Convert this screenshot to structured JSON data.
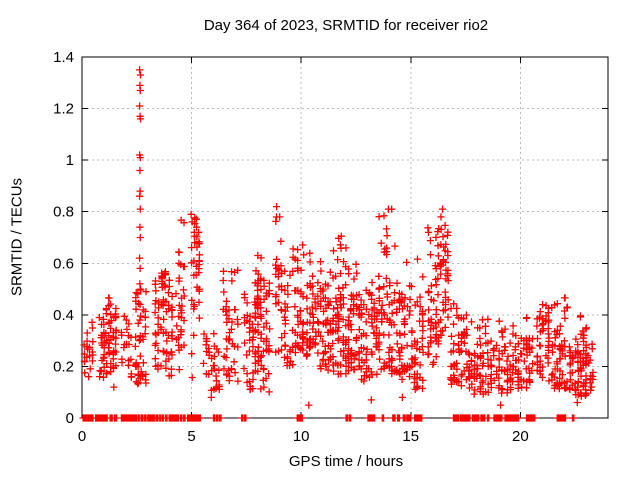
{
  "chart_data": {
    "type": "scatter",
    "title": "Day 364 of 2023, SRMTID for receiver rio2",
    "xlabel": "GPS time / hours",
    "ylabel": "SRMTID / TECUs",
    "xlim": [
      0,
      24
    ],
    "ylim": [
      0,
      1.4
    ],
    "x_ticks": [
      0,
      5,
      10,
      15,
      20
    ],
    "x_tick_labels": [
      "0",
      "5",
      "10",
      "15",
      "20"
    ],
    "y_ticks": [
      0,
      0.2,
      0.4,
      0.6,
      0.8,
      1.0,
      1.2,
      1.4
    ],
    "y_tick_labels": [
      "0",
      "0.2",
      "0.4",
      "0.6",
      "0.8",
      "1",
      "1.2",
      "1.4"
    ],
    "grid": true,
    "legend": "none",
    "marker": "plus",
    "marker_color": "#ff0000",
    "grid_color": "#b9b9b9",
    "axis_color": "#000000",
    "text_color": "#000000",
    "seed": 1234567,
    "spike_points": [
      [
        2.63,
        1.35
      ],
      [
        2.67,
        1.33
      ],
      [
        2.64,
        1.29
      ],
      [
        2.66,
        1.27
      ],
      [
        2.63,
        1.21
      ],
      [
        2.65,
        1.17
      ],
      [
        2.67,
        1.16
      ],
      [
        2.63,
        1.02
      ],
      [
        2.66,
        1.01
      ],
      [
        2.64,
        0.96
      ],
      [
        2.65,
        0.88
      ],
      [
        2.63,
        0.86
      ],
      [
        2.66,
        0.81
      ],
      [
        2.64,
        0.74
      ],
      [
        2.66,
        0.7
      ],
      [
        2.63,
        0.62
      ],
      [
        2.65,
        0.58
      ],
      [
        2.64,
        0.52
      ],
      [
        2.66,
        0.5
      ],
      [
        2.65,
        0.44
      ],
      [
        2.64,
        0.38
      ],
      [
        2.62,
        0.3
      ],
      [
        2.66,
        0.24
      ]
    ],
    "outlier_points": [
      [
        0.3,
        0.16
      ],
      [
        1.45,
        0.12
      ],
      [
        5.9,
        0.08
      ],
      [
        10.35,
        0.05
      ],
      [
        13.2,
        0.07
      ],
      [
        14.62,
        0.08
      ],
      [
        19.1,
        0.05
      ],
      [
        22.6,
        0.06
      ],
      [
        23.25,
        0.12
      ],
      [
        8.88,
        0.82
      ],
      [
        9.02,
        0.78
      ],
      [
        13.98,
        0.81
      ],
      [
        16.45,
        0.81
      ],
      [
        4.98,
        0.79
      ],
      [
        16.38,
        0.78
      ]
    ],
    "clusters": [
      {
        "x0": 0.05,
        "x1": 0.55,
        "yMin": 0.16,
        "yLo": 0.2,
        "yHi": 0.32,
        "yMax": 0.38,
        "n": 20
      },
      {
        "x0": 0.75,
        "x1": 1.05,
        "yMin": 0.14,
        "yLo": 0.2,
        "yHi": 0.36,
        "yMax": 0.42,
        "n": 22
      },
      {
        "x0": 1.05,
        "x1": 1.6,
        "yMin": 0.17,
        "yLo": 0.24,
        "yHi": 0.4,
        "yMax": 0.47,
        "n": 48
      },
      {
        "x0": 1.75,
        "x1": 2.3,
        "yMin": 0.14,
        "yLo": 0.2,
        "yHi": 0.36,
        "yMax": 0.45,
        "n": 20
      },
      {
        "x0": 2.4,
        "x1": 2.95,
        "yMin": 0.13,
        "yLo": 0.17,
        "yHi": 0.4,
        "yMax": 0.5,
        "n": 42
      },
      {
        "x0": 3.3,
        "x1": 4.15,
        "yMin": 0.14,
        "yLo": 0.24,
        "yHi": 0.45,
        "yMax": 0.56,
        "n": 60
      },
      {
        "x0": 3.6,
        "x1": 3.85,
        "yMin": 0.5,
        "yLo": 0.51,
        "yHi": 0.56,
        "yMax": 0.57,
        "n": 14
      },
      {
        "x0": 4.25,
        "x1": 4.7,
        "yMin": 0.18,
        "yLo": 0.28,
        "yHi": 0.6,
        "yMax": 0.78,
        "n": 32
      },
      {
        "x0": 4.95,
        "x1": 5.4,
        "yMin": 0.14,
        "yLo": 0.35,
        "yHi": 0.66,
        "yMax": 0.79,
        "n": 38
      },
      {
        "x0": 5.5,
        "x1": 6.3,
        "yMin": 0.1,
        "yLo": 0.14,
        "yHi": 0.28,
        "yMax": 0.34,
        "n": 32
      },
      {
        "x0": 6.4,
        "x1": 7.15,
        "yMin": 0.14,
        "yLo": 0.2,
        "yHi": 0.42,
        "yMax": 0.58,
        "n": 42
      },
      {
        "x0": 7.35,
        "x1": 8.6,
        "yMin": 0.1,
        "yLo": 0.2,
        "yHi": 0.46,
        "yMax": 0.64,
        "n": 95
      },
      {
        "x0": 7.95,
        "x1": 8.35,
        "yMin": 0.42,
        "yLo": 0.44,
        "yHi": 0.52,
        "yMax": 0.55,
        "n": 22
      },
      {
        "x0": 8.8,
        "x1": 9.15,
        "yMin": 0.24,
        "yLo": 0.3,
        "yHi": 0.62,
        "yMax": 0.82,
        "n": 26
      },
      {
        "x0": 9.2,
        "x1": 10.15,
        "yMin": 0.2,
        "yLo": 0.27,
        "yHi": 0.5,
        "yMax": 0.68,
        "n": 70
      },
      {
        "x0": 10.2,
        "x1": 10.6,
        "yMin": 0.22,
        "yLo": 0.28,
        "yHi": 0.55,
        "yMax": 0.72,
        "n": 32
      },
      {
        "x0": 10.6,
        "x1": 11.4,
        "yMin": 0.18,
        "yLo": 0.26,
        "yHi": 0.5,
        "yMax": 0.66,
        "n": 62
      },
      {
        "x0": 11.4,
        "x1": 12.1,
        "yMin": 0.17,
        "yLo": 0.24,
        "yHi": 0.5,
        "yMax": 0.73,
        "n": 70
      },
      {
        "x0": 12.1,
        "x1": 12.7,
        "yMin": 0.18,
        "yLo": 0.24,
        "yHi": 0.46,
        "yMax": 0.62,
        "n": 55
      },
      {
        "x0": 12.7,
        "x1": 13.5,
        "yMin": 0.14,
        "yLo": 0.2,
        "yHi": 0.42,
        "yMax": 0.55,
        "n": 60
      },
      {
        "x0": 13.5,
        "x1": 14.2,
        "yMin": 0.17,
        "yLo": 0.25,
        "yHi": 0.5,
        "yMax": 0.81,
        "n": 62
      },
      {
        "x0": 14.2,
        "x1": 15.0,
        "yMin": 0.14,
        "yLo": 0.2,
        "yHi": 0.45,
        "yMax": 0.7,
        "n": 60
      },
      {
        "x0": 15.0,
        "x1": 15.6,
        "yMin": 0.11,
        "yLo": 0.17,
        "yHi": 0.4,
        "yMax": 0.65,
        "n": 45
      },
      {
        "x0": 15.75,
        "x1": 16.2,
        "yMin": 0.18,
        "yLo": 0.25,
        "yHi": 0.55,
        "yMax": 0.78,
        "n": 38
      },
      {
        "x0": 16.2,
        "x1": 16.75,
        "yMin": 0.28,
        "yLo": 0.4,
        "yHi": 0.72,
        "yMax": 0.82,
        "n": 48
      },
      {
        "x0": 16.8,
        "x1": 17.6,
        "yMin": 0.12,
        "yLo": 0.15,
        "yHi": 0.32,
        "yMax": 0.45,
        "n": 55
      },
      {
        "x0": 17.6,
        "x1": 18.6,
        "yMin": 0.09,
        "yLo": 0.13,
        "yHi": 0.28,
        "yMax": 0.4,
        "n": 62
      },
      {
        "x0": 18.6,
        "x1": 19.6,
        "yMin": 0.09,
        "yLo": 0.14,
        "yHi": 0.28,
        "yMax": 0.38,
        "n": 55
      },
      {
        "x0": 19.6,
        "x1": 20.6,
        "yMin": 0.11,
        "yLo": 0.16,
        "yHi": 0.3,
        "yMax": 0.4,
        "n": 62
      },
      {
        "x0": 20.7,
        "x1": 21.35,
        "yMin": 0.14,
        "yLo": 0.19,
        "yHi": 0.38,
        "yMax": 0.46,
        "n": 46
      },
      {
        "x0": 21.4,
        "x1": 22.2,
        "yMin": 0.11,
        "yLo": 0.15,
        "yHi": 0.34,
        "yMax": 0.47,
        "n": 55
      },
      {
        "x0": 22.2,
        "x1": 22.7,
        "yMin": 0.09,
        "yLo": 0.12,
        "yHi": 0.26,
        "yMax": 0.34,
        "n": 35
      },
      {
        "x0": 22.7,
        "x1": 23.05,
        "yMin": 0.08,
        "yLo": 0.12,
        "yHi": 0.3,
        "yMax": 0.42,
        "n": 40
      },
      {
        "x0": 23.05,
        "x1": 23.35,
        "yMin": 0.1,
        "yLo": 0.13,
        "yHi": 0.24,
        "yMax": 0.3,
        "n": 12
      }
    ],
    "zero_segments": [
      [
        0.05,
        0.5
      ],
      [
        0.62,
        1.15
      ],
      [
        1.28,
        1.38
      ],
      [
        1.48,
        1.58
      ],
      [
        1.8,
        2.5
      ],
      [
        2.58,
        2.64
      ],
      [
        2.72,
        2.78
      ],
      [
        2.86,
        2.92
      ],
      [
        3.0,
        3.06
      ],
      [
        3.12,
        3.18
      ],
      [
        3.24,
        3.3
      ],
      [
        3.38,
        3.44
      ],
      [
        3.52,
        3.58
      ],
      [
        3.66,
        3.72
      ],
      [
        3.82,
        3.88
      ],
      [
        3.98,
        4.4
      ],
      [
        4.5,
        4.56
      ],
      [
        4.64,
        4.7
      ],
      [
        4.82,
        5.4
      ],
      [
        6.0,
        6.06
      ],
      [
        6.14,
        6.2
      ],
      [
        6.28,
        6.34
      ],
      [
        7.28,
        7.34
      ],
      [
        7.42,
        7.48
      ],
      [
        9.82,
        10.05
      ],
      [
        12.05,
        12.12
      ],
      [
        12.2,
        12.26
      ],
      [
        13.05,
        13.35
      ],
      [
        13.7,
        13.76
      ],
      [
        14.18,
        14.28
      ],
      [
        14.4,
        14.48
      ],
      [
        14.66,
        14.74
      ],
      [
        14.82,
        15.0
      ],
      [
        15.18,
        15.5
      ],
      [
        16.95,
        17.18
      ],
      [
        17.26,
        17.7
      ],
      [
        17.82,
        18.1
      ],
      [
        18.2,
        18.38
      ],
      [
        18.5,
        18.56
      ],
      [
        18.8,
        19.16
      ],
      [
        19.3,
        19.92
      ],
      [
        20.28,
        20.66
      ],
      [
        21.68,
        22.06
      ],
      [
        22.38,
        22.44
      ]
    ]
  }
}
